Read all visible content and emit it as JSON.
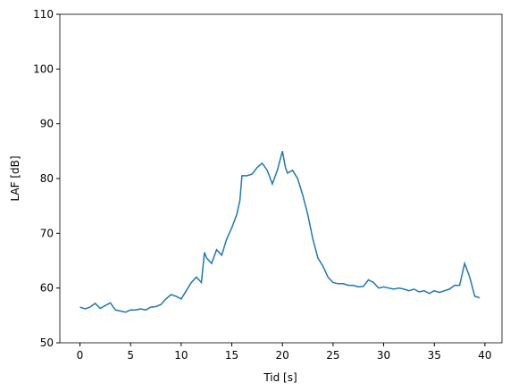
{
  "chart_data": {
    "type": "line",
    "xlabel": "Tid [s]",
    "ylabel": "LAF [dB]",
    "x": [
      0,
      0.5,
      1,
      1.5,
      2,
      2.5,
      3,
      3.5,
      4,
      4.5,
      5,
      5.5,
      6,
      6.5,
      7,
      7.5,
      8,
      8.5,
      9,
      9.5,
      10,
      10.5,
      11,
      11.5,
      12,
      12.3,
      12.5,
      13,
      13.5,
      14,
      14.5,
      15,
      15.5,
      15.8,
      16,
      16.5,
      17,
      17.5,
      18,
      18.5,
      19,
      19.5,
      20,
      20.3,
      20.5,
      21,
      21.5,
      22,
      22.5,
      23,
      23.5,
      24,
      24.5,
      25,
      25.5,
      26,
      26.5,
      27,
      27.5,
      28,
      28.5,
      29,
      29.5,
      30,
      30.5,
      31,
      31.5,
      32,
      32.5,
      33,
      33.5,
      34,
      34.5,
      35,
      35.5,
      36,
      36.5,
      37,
      37.5,
      38,
      38.5,
      39,
      39.5
    ],
    "series": [
      {
        "name": "LAF",
        "color": "#1f77b4",
        "values": [
          56.5,
          56.2,
          56.5,
          57.2,
          56.3,
          56.8,
          57.3,
          56.0,
          55.8,
          55.6,
          56.0,
          56.0,
          56.2,
          56.0,
          56.5,
          56.6,
          57.0,
          58.0,
          58.8,
          58.5,
          58.0,
          59.5,
          61.0,
          62.0,
          61.0,
          66.5,
          65.5,
          64.5,
          67.0,
          66.0,
          69.0,
          71.0,
          73.5,
          76.0,
          80.5,
          80.5,
          80.8,
          82.0,
          82.8,
          81.5,
          79.0,
          81.5,
          85.0,
          82.0,
          81.0,
          81.5,
          80.0,
          77.0,
          73.5,
          69.0,
          65.5,
          64.0,
          62.0,
          61.0,
          60.8,
          60.8,
          60.5,
          60.5,
          60.2,
          60.3,
          61.5,
          61.0,
          60.0,
          60.2,
          60.0,
          59.8,
          60.0,
          59.8,
          59.5,
          59.8,
          59.3,
          59.5,
          59.0,
          59.5,
          59.2,
          59.5,
          59.8,
          60.5,
          60.5,
          64.5,
          62.0,
          58.5,
          58.2
        ]
      }
    ],
    "xlim": [
      -1.985,
      41.685
    ],
    "ylim": [
      50,
      110
    ],
    "xticks": [
      0,
      5,
      10,
      15,
      20,
      25,
      30,
      35,
      40
    ],
    "yticks": [
      50,
      60,
      70,
      80,
      90,
      100,
      110
    ],
    "grid": false
  }
}
